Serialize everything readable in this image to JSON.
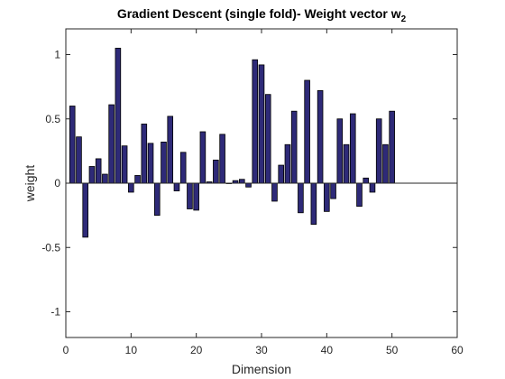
{
  "chart_data": {
    "type": "bar",
    "title": "Gradient Descent (single fold)- Weight vector w",
    "title_subscript": "2",
    "xlabel": "Dimension",
    "ylabel": "weight",
    "xlim": [
      0,
      60
    ],
    "ylim": [
      -1.2,
      1.2
    ],
    "xticks": [
      0,
      10,
      20,
      30,
      40,
      50,
      60
    ],
    "yticks": [
      -1,
      -0.5,
      0,
      0.5,
      1
    ],
    "ytick_labels": [
      "-1",
      "-0.5",
      "0",
      "0.5",
      "1"
    ],
    "grid": false,
    "bar_color": "#2e2a78",
    "bar_edge_color": "#000000",
    "x": [
      1,
      2,
      3,
      4,
      5,
      6,
      7,
      8,
      9,
      10,
      11,
      12,
      13,
      14,
      15,
      16,
      17,
      18,
      19,
      20,
      21,
      22,
      23,
      24,
      25,
      26,
      27,
      28,
      29,
      30,
      31,
      32,
      33,
      34,
      35,
      36,
      37,
      38,
      39,
      40,
      41,
      42,
      43,
      44,
      45,
      46,
      47,
      48,
      49,
      50
    ],
    "values": [
      0.6,
      0.36,
      -0.42,
      0.13,
      0.19,
      0.07,
      0.61,
      1.05,
      0.29,
      -0.07,
      0.06,
      0.46,
      0.31,
      -0.25,
      0.32,
      0.52,
      -0.06,
      0.24,
      -0.2,
      -0.21,
      0.4,
      0.01,
      0.18,
      0.38,
      0.0,
      0.02,
      0.03,
      -0.03,
      0.96,
      0.92,
      0.69,
      -0.14,
      0.14,
      0.3,
      0.56,
      -0.23,
      0.8,
      -0.32,
      0.72,
      -0.22,
      -0.12,
      0.5,
      0.3,
      0.54,
      -0.18,
      0.04,
      -0.07,
      0.5,
      0.3,
      0.56
    ]
  }
}
